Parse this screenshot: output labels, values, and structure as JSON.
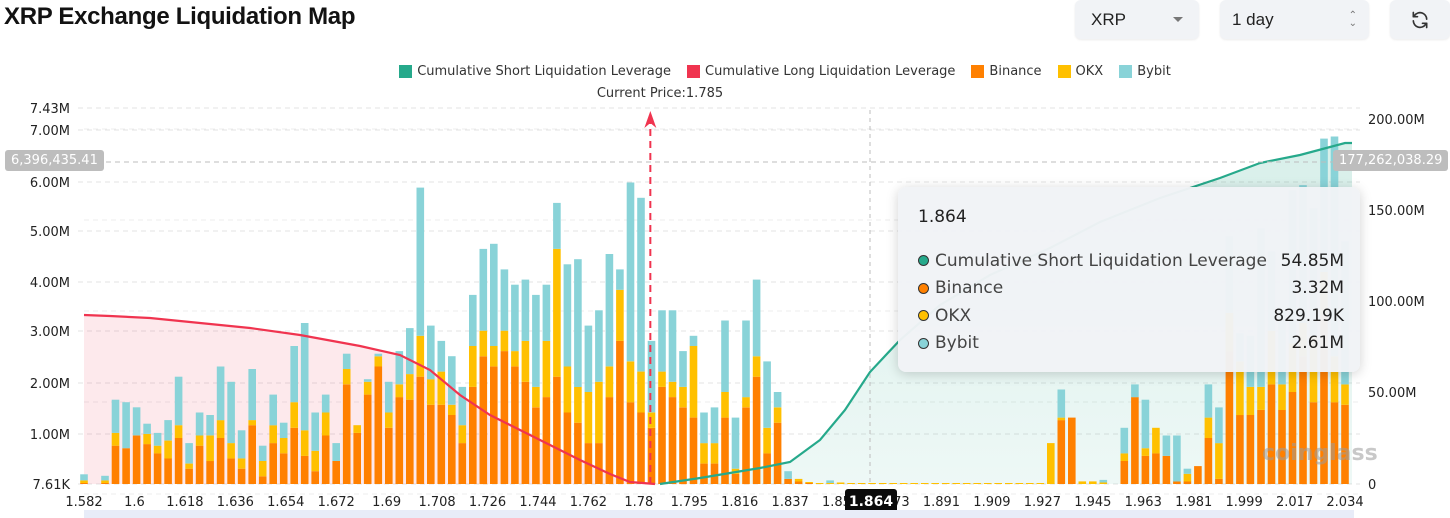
{
  "header": {
    "title": "XRP Exchange Liquidation Map",
    "symbol_select": {
      "value": "XRP",
      "icon": "caret-down-icon"
    },
    "period_select": {
      "value": "1 day",
      "icon": "updown-chevron-icon"
    },
    "refresh_button": {
      "icon": "refresh-icon"
    }
  },
  "legend": [
    {
      "label": "Cumulative Short Liquidation Leverage",
      "color": "#26a98b"
    },
    {
      "label": "Cumulative Long Liquidation Leverage",
      "color": "#f0344f"
    },
    {
      "label": "Binance",
      "color": "#ff8000"
    },
    {
      "label": "OKX",
      "color": "#ffc000"
    },
    {
      "label": "Bybit",
      "color": "#89d3d8"
    }
  ],
  "current_price_label": "Current Price:1.785",
  "crosshair": {
    "left_badge": "6,396,435.41",
    "right_badge": "177,262,038.29",
    "x_badge": "1.864"
  },
  "tooltip": {
    "title": "1.864",
    "rows": [
      {
        "label": "Cumulative Short Liquidation Leverage",
        "value": "54.85M",
        "color": "#26a98b"
      },
      {
        "label": "Binance",
        "value": "3.32M",
        "color": "#ff8000"
      },
      {
        "label": "OKX",
        "value": "829.19K",
        "color": "#ffc000"
      },
      {
        "label": "Bybit",
        "value": "2.61M",
        "color": "#89d3d8"
      }
    ]
  },
  "watermark": "coinglass",
  "chart_data": {
    "type": "bar",
    "title": "XRP Exchange Liquidation Map",
    "xlabel": "",
    "ylabel": "",
    "x_tick_labels": [
      "1.582",
      "1.6",
      "1.618",
      "1.636",
      "1.654",
      "1.672",
      "1.69",
      "1.708",
      "1.726",
      "1.744",
      "1.762",
      "1.78",
      "1.795",
      "1.816",
      "1.837",
      "1.855",
      "1.873",
      "1.891",
      "1.909",
      "1.927",
      "1.945",
      "1.963",
      "1.981",
      "1.999",
      "2.017",
      "2.034"
    ],
    "x_range": [
      1.582,
      2.034
    ],
    "current_price": 1.785,
    "y_left": {
      "ticks": [
        "7.61K",
        "1.00M",
        "2.00M",
        "3.00M",
        "4.00M",
        "5.00M",
        "6.00M",
        "7.00M",
        "7.43M"
      ],
      "range": [
        7610,
        7430000
      ]
    },
    "y_right": {
      "ticks": [
        "0",
        "50.00M",
        "100.00M",
        "150.00M",
        "200.00M"
      ],
      "range": [
        0,
        200000000
      ]
    },
    "grid": true,
    "legend_position": "top-center",
    "stacked_series_order": [
      "Binance",
      "OKX",
      "Bybit"
    ],
    "bars_millions": [
      [
        0.02,
        0.05,
        0.12
      ],
      [
        0,
        0,
        0
      ],
      [
        0.02,
        0.05,
        0.09
      ],
      [
        0.75,
        0.25,
        0.65
      ],
      [
        0.7,
        0,
        0.9
      ],
      [
        0.95,
        0,
        0.55
      ],
      [
        0.78,
        0.2,
        0.2
      ],
      [
        0.6,
        0.15,
        0.25
      ],
      [
        0.5,
        0.35,
        0.4
      ],
      [
        0.9,
        0.25,
        0.95
      ],
      [
        0.3,
        0.1,
        0.4
      ],
      [
        0.75,
        0.2,
        0.45
      ],
      [
        0.45,
        0.5,
        0.4
      ],
      [
        0.9,
        0.35,
        1.05
      ],
      [
        0.5,
        0.3,
        1.2
      ],
      [
        0.3,
        0.2,
        0.55
      ],
      [
        1.15,
        0.1,
        1.0
      ],
      [
        0.15,
        0.3,
        0.3
      ],
      [
        0.8,
        0.35,
        0.6
      ],
      [
        0.6,
        0.3,
        0.3
      ],
      [
        1.1,
        0.5,
        1.1
      ],
      [
        0.55,
        0.5,
        2.1
      ],
      [
        0.25,
        0.4,
        0.75
      ],
      [
        0.95,
        0.45,
        0.35
      ],
      [
        0.45,
        0,
        0.35
      ],
      [
        1.95,
        0.3,
        0.3
      ],
      [
        1.0,
        0.15,
        0
      ],
      [
        1.75,
        0.25,
        0.05
      ],
      [
        2.3,
        0.2,
        0.05
      ],
      [
        1.1,
        0.3,
        0.6
      ],
      [
        1.7,
        0.25,
        0.65
      ],
      [
        1.65,
        0.5,
        0.9
      ],
      [
        2.1,
        0.8,
        2.9
      ],
      [
        1.55,
        0.5,
        1.05
      ],
      [
        1.55,
        0.65,
        0.6
      ],
      [
        1.35,
        0.2,
        0.95
      ],
      [
        0.8,
        0.35,
        0.75
      ],
      [
        1.9,
        0.8,
        1.0
      ],
      [
        2.5,
        0.5,
        1.6
      ],
      [
        2.3,
        0.4,
        2.0
      ],
      [
        2.6,
        0.4,
        1.2
      ],
      [
        2.3,
        0.3,
        1.3
      ],
      [
        2.0,
        0.8,
        1.2
      ],
      [
        1.5,
        0.4,
        1.8
      ],
      [
        1.7,
        1.1,
        1.1
      ],
      [
        2.1,
        2.5,
        0.9
      ],
      [
        1.4,
        0.9,
        2.0
      ],
      [
        1.2,
        0.7,
        2.5
      ],
      [
        0.8,
        1.0,
        1.3
      ],
      [
        0.8,
        1.2,
        1.4
      ],
      [
        1.7,
        0.6,
        2.2
      ],
      [
        2.8,
        1.0,
        0.4
      ],
      [
        1.6,
        0.8,
        3.5
      ],
      [
        1.4,
        0.8,
        3.4
      ],
      [
        1.1,
        0.3,
        1.4
      ],
      [
        1.9,
        0.3,
        1.2
      ],
      [
        1.7,
        0.3,
        1.4
      ],
      [
        1.5,
        0.4,
        0.7
      ],
      [
        1.3,
        1.4,
        0.2
      ],
      [
        0.4,
        0.4,
        0.6
      ],
      [
        0.4,
        0.4,
        0.7
      ],
      [
        1.3,
        0.5,
        1.4
      ],
      [
        0.2,
        0.1,
        1.0
      ],
      [
        1.5,
        0.2,
        1.5
      ],
      [
        2.1,
        0.4,
        1.5
      ],
      [
        0.6,
        0.5,
        1.3
      ],
      [
        1.2,
        0.3,
        0.3
      ],
      [
        0.1,
        0,
        0.15
      ],
      [
        0.05,
        0.05,
        0
      ],
      [
        0.02,
        0.02,
        0
      ],
      [
        0,
        0.02,
        0
      ],
      [
        0,
        0.02,
        0.05
      ],
      [
        0,
        0.03,
        0
      ],
      [
        0,
        0.02,
        0
      ],
      [
        0,
        0.02,
        0
      ],
      [
        0,
        0.02,
        0
      ],
      [
        0,
        0.02,
        0
      ],
      [
        0,
        0.02,
        0
      ],
      [
        0,
        0.02,
        0
      ],
      [
        0,
        0.02,
        0
      ],
      [
        0,
        0.02,
        0
      ],
      [
        0,
        0.02,
        0
      ],
      [
        0,
        0.02,
        0
      ],
      [
        0,
        0.02,
        0
      ],
      [
        0,
        0.02,
        0
      ],
      [
        0,
        0.02,
        0
      ],
      [
        0,
        0.02,
        0
      ],
      [
        0,
        0.02,
        0
      ],
      [
        0,
        0.02,
        0
      ],
      [
        0,
        0.02,
        0
      ],
      [
        0,
        0.02,
        0
      ],
      [
        0,
        0.02,
        0
      ],
      [
        0,
        0.8,
        0
      ],
      [
        1.25,
        0.05,
        0.55
      ],
      [
        1.3,
        0,
        0
      ],
      [
        0,
        0.05,
        0
      ],
      [
        0,
        0.05,
        0
      ],
      [
        0,
        0.03,
        0.05
      ],
      [
        0,
        0,
        0
      ],
      [
        0.45,
        0.15,
        0.5
      ],
      [
        1.7,
        0,
        0.25
      ],
      [
        0.55,
        0.15,
        0.95
      ],
      [
        0.6,
        0.5,
        0
      ],
      [
        0.55,
        0,
        0.4
      ],
      [
        0.05,
        0,
        0.9
      ],
      [
        0.05,
        0.15,
        0.1
      ],
      [
        0.35,
        0,
        0
      ],
      [
        0.9,
        0.4,
        0.65
      ],
      [
        0.1,
        0.7,
        0.7
      ],
      [
        2.6,
        0.75,
        1.5
      ],
      [
        1.35,
        1.05,
        0.55
      ],
      [
        1.35,
        0.55,
        1.0
      ],
      [
        1.45,
        0.45,
        3.1
      ],
      [
        1.95,
        1.05,
        1.55
      ],
      [
        1.45,
        0.5,
        1.45
      ],
      [
        1.8,
        0.95,
        3.0
      ],
      [
        2.5,
        0.65,
        2.7
      ],
      [
        1.6,
        1.3,
        2.5
      ],
      [
        3.32,
        0.83,
        2.61
      ],
      [
        1.6,
        0.9,
        4.3
      ],
      [
        1.55,
        0.4,
        2.8
      ]
    ],
    "cumulative_long_millions_right_axis_scaled": "red line declining from ~3.35M (left axis scale) at 1.582 to 0 at ~1.785",
    "cumulative_short_total_right": 177262038.29
  }
}
